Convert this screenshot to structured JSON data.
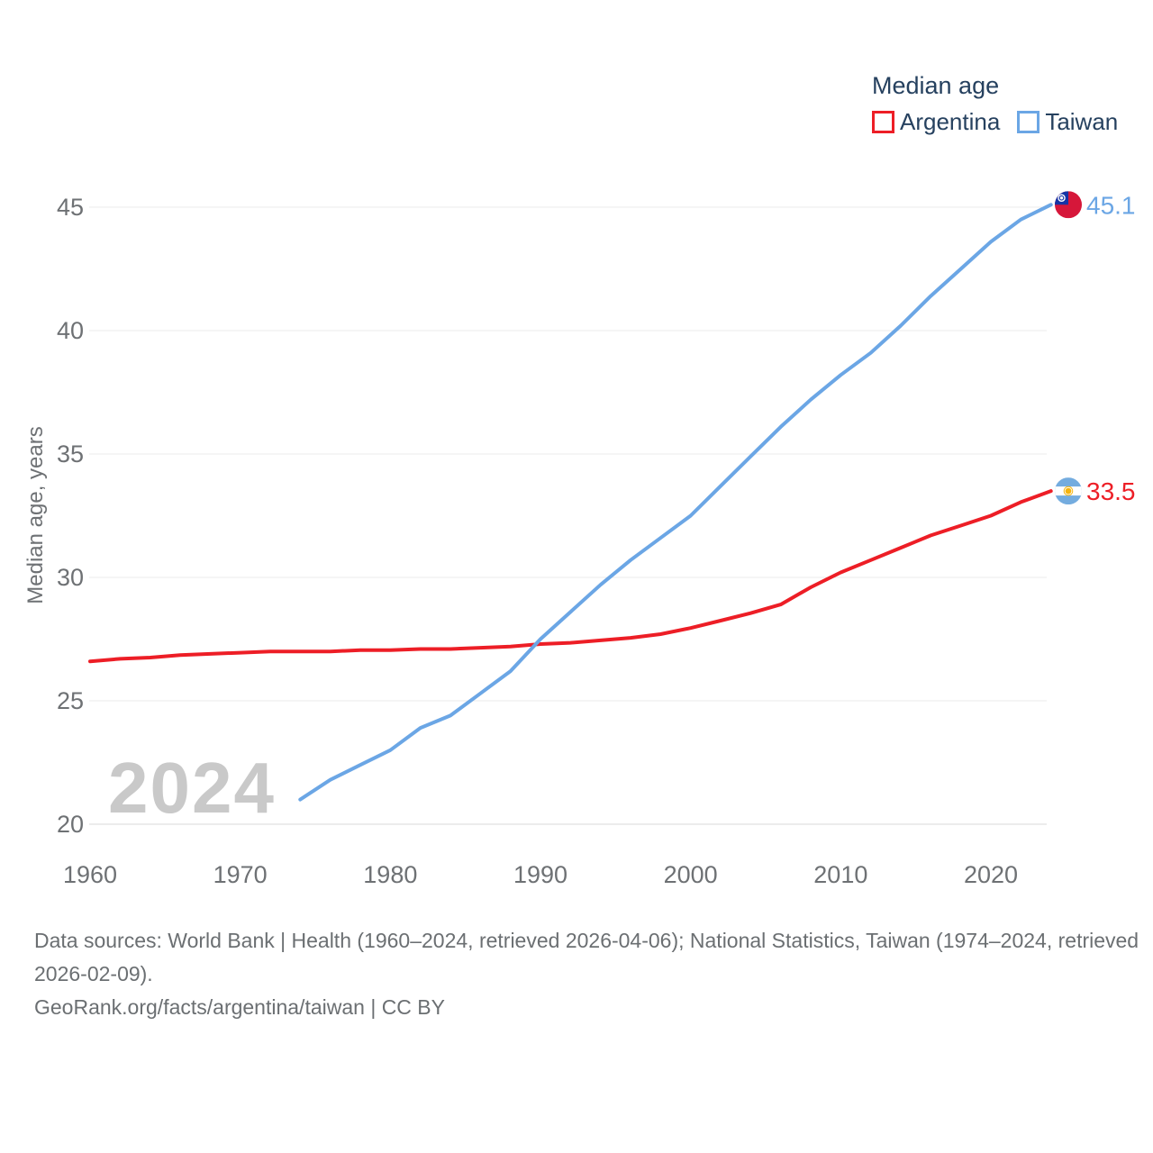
{
  "legend": {
    "title": "Median age",
    "series": [
      {
        "label": "Argentina",
        "color": "#ed1e26"
      },
      {
        "label": "Taiwan",
        "color": "#6ba6e5"
      }
    ]
  },
  "watermark_year": "2024",
  "chart_data": {
    "type": "line",
    "title": "Median age",
    "xlabel": "",
    "ylabel": "Median age, years",
    "x_ticks": [
      1960,
      1970,
      1980,
      1990,
      2000,
      2010,
      2020
    ],
    "y_ticks": [
      20,
      25,
      30,
      35,
      40,
      45
    ],
    "xlim": [
      1960,
      2024
    ],
    "ylim": [
      20,
      45.5
    ],
    "grid": "horizontal",
    "legend_position": "top-right",
    "series": [
      {
        "name": "Argentina",
        "color": "#ed1e26",
        "flag": "argentina",
        "end_label": "33.5",
        "x": [
          1960,
          1962,
          1964,
          1966,
          1968,
          1970,
          1972,
          1974,
          1976,
          1978,
          1980,
          1982,
          1984,
          1986,
          1988,
          1990,
          1992,
          1994,
          1996,
          1998,
          2000,
          2002,
          2004,
          2006,
          2008,
          2010,
          2012,
          2014,
          2016,
          2018,
          2020,
          2022,
          2024
        ],
        "values": [
          26.6,
          26.7,
          26.75,
          26.85,
          26.9,
          26.95,
          27.0,
          27.0,
          27.0,
          27.05,
          27.05,
          27.1,
          27.1,
          27.15,
          27.2,
          27.3,
          27.35,
          27.45,
          27.55,
          27.7,
          27.95,
          28.25,
          28.55,
          28.9,
          29.6,
          30.2,
          30.7,
          31.2,
          31.7,
          32.1,
          32.5,
          33.05,
          33.5
        ]
      },
      {
        "name": "Taiwan",
        "color": "#6ba6e5",
        "flag": "taiwan",
        "end_label": "45.1",
        "x": [
          1974,
          1976,
          1978,
          1980,
          1982,
          1984,
          1986,
          1988,
          1990,
          1992,
          1994,
          1996,
          1998,
          2000,
          2002,
          2004,
          2006,
          2008,
          2010,
          2012,
          2014,
          2016,
          2018,
          2020,
          2022,
          2024
        ],
        "values": [
          21.0,
          21.8,
          22.4,
          23.0,
          23.9,
          24.4,
          25.3,
          26.2,
          27.5,
          28.6,
          29.7,
          30.7,
          31.6,
          32.5,
          33.7,
          34.9,
          36.1,
          37.2,
          38.2,
          39.1,
          40.2,
          41.4,
          42.5,
          43.6,
          44.5,
          45.1
        ]
      }
    ]
  },
  "flags": {
    "taiwan": {
      "field": "#d6173a",
      "canton": "#1534a6",
      "sun": "#ffffff"
    },
    "argentina": {
      "stripe": "#74acdf",
      "middle": "#ffffff",
      "sun": "#f6b40e"
    }
  },
  "footer": {
    "sources": "Data sources: World Bank | Health (1960–2024, retrieved 2026-04-06); National Statistics, Taiwan (1974–2024, retrieved 2026-02-09).",
    "attribution": "GeoRank.org/facts/argentina/taiwan | CC BY"
  }
}
